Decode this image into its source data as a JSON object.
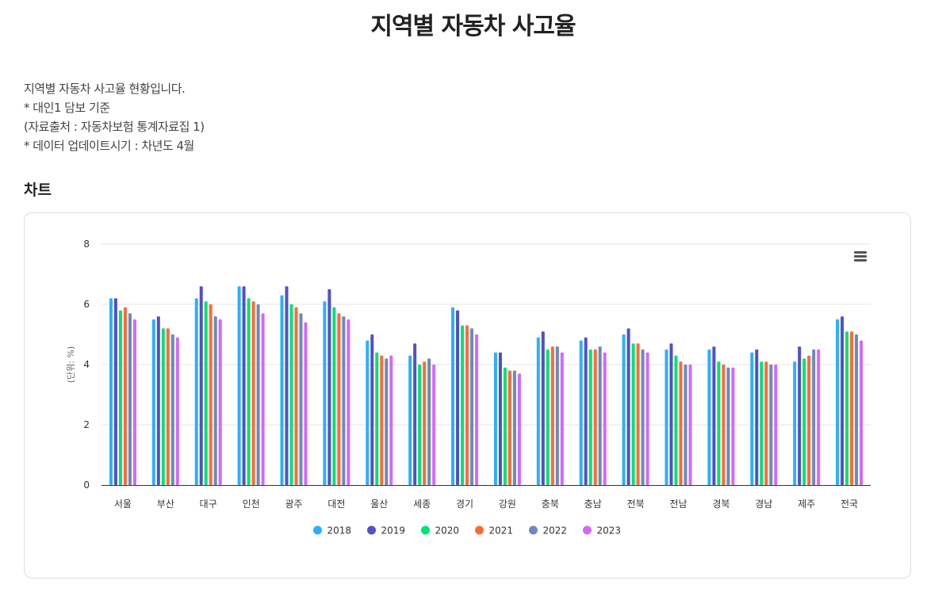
{
  "page": {
    "title": "지역별 자동차 사고율",
    "description": [
      "지역별 자동차 사고율 현황입니다.",
      "* 대인1 담보 기준",
      "(자료출처 : 자동차보험 통계자료집 1)",
      "* 데이터 업데이트시기 : 차년도 4월"
    ],
    "section_title": "차트"
  },
  "chart_menu": {
    "icon": "hamburger-menu-icon"
  },
  "chart_data": {
    "type": "bar",
    "title": "",
    "xlabel": "",
    "ylabel": "(단위: %)",
    "ylim": [
      0,
      8
    ],
    "yticks": [
      0,
      2,
      4,
      6,
      8
    ],
    "grid": true,
    "legend_position": "bottom-center",
    "categories": [
      "서울",
      "부산",
      "대구",
      "인천",
      "광주",
      "대전",
      "울산",
      "세종",
      "경기",
      "강원",
      "충북",
      "충남",
      "전북",
      "전남",
      "경북",
      "경남",
      "제주",
      "전국"
    ],
    "series": [
      {
        "name": "2018",
        "color": "#2caffe",
        "values": [
          6.2,
          5.5,
          6.2,
          6.6,
          6.3,
          6.1,
          4.8,
          4.3,
          5.9,
          4.4,
          4.9,
          4.8,
          5.0,
          4.5,
          4.5,
          4.4,
          4.1,
          5.5
        ]
      },
      {
        "name": "2019",
        "color": "#544fc5",
        "values": [
          6.2,
          5.6,
          6.6,
          6.6,
          6.6,
          6.5,
          5.0,
          4.7,
          5.8,
          4.4,
          5.1,
          4.9,
          5.2,
          4.7,
          4.6,
          4.5,
          4.6,
          5.6
        ]
      },
      {
        "name": "2020",
        "color": "#00e272",
        "values": [
          5.8,
          5.2,
          6.1,
          6.2,
          6.0,
          5.9,
          4.4,
          4.0,
          5.3,
          3.9,
          4.5,
          4.5,
          4.7,
          4.3,
          4.1,
          4.1,
          4.2,
          5.1
        ]
      },
      {
        "name": "2021",
        "color": "#fe6a35",
        "values": [
          5.9,
          5.2,
          6.0,
          6.1,
          5.9,
          5.7,
          4.3,
          4.1,
          5.3,
          3.8,
          4.6,
          4.5,
          4.7,
          4.1,
          4.0,
          4.1,
          4.3,
          5.1
        ]
      },
      {
        "name": "2022",
        "color": "#6b8abc",
        "values": [
          5.7,
          5.0,
          5.6,
          6.0,
          5.7,
          5.6,
          4.2,
          4.2,
          5.2,
          3.8,
          4.6,
          4.6,
          4.5,
          4.0,
          3.9,
          4.0,
          4.5,
          5.0
        ]
      },
      {
        "name": "2023",
        "color": "#d568fb",
        "values": [
          5.5,
          4.9,
          5.5,
          5.7,
          5.4,
          5.5,
          4.3,
          4.0,
          5.0,
          3.7,
          4.4,
          4.4,
          4.4,
          4.0,
          3.9,
          4.0,
          4.5,
          4.8
        ]
      }
    ]
  }
}
